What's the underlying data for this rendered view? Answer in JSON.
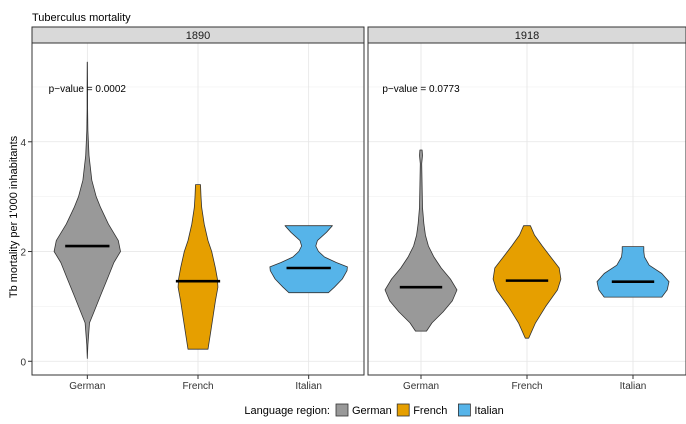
{
  "chart_data": {
    "type": "violin",
    "title": "Tuberculus mortality",
    "ylabel": "Tb mortality per 1'000 inhabitants",
    "xlabel": "",
    "ylim": [
      -0.25,
      5.8
    ],
    "yticks": [
      0,
      2,
      4
    ],
    "grid": true,
    "legend": {
      "title": "Language region:",
      "placement": "bottom",
      "items": [
        {
          "name": "German",
          "color": "#999999"
        },
        {
          "name": "French",
          "color": "#E69F00"
        },
        {
          "name": "Italian",
          "color": "#56B4E9"
        }
      ]
    },
    "categories": [
      "German",
      "French",
      "Italian"
    ],
    "panels": [
      {
        "strip": "1890",
        "annotation": "p−value = 0.0002",
        "annotation_y": 4.98,
        "violins": [
          {
            "category": "German",
            "median": 2.1,
            "max_halfwidth": 0.3,
            "profile": [
              [
                0.05,
                0
              ],
              [
                0.3,
                0.05
              ],
              [
                0.7,
                0.2
              ],
              [
                0.9,
                0.6
              ],
              [
                1.2,
                1.2
              ],
              [
                1.5,
                1.8
              ],
              [
                1.8,
                2.4
              ],
              [
                2.0,
                3.0
              ],
              [
                2.2,
                2.8
              ],
              [
                2.5,
                1.9
              ],
              [
                2.8,
                1.2
              ],
              [
                3.0,
                0.8
              ],
              [
                3.3,
                0.4
              ],
              [
                3.75,
                0.15
              ],
              [
                4.2,
                0.05
              ],
              [
                4.6,
                0.02
              ],
              [
                5.0,
                0.02
              ],
              [
                5.45,
                0.01
              ]
            ]
          },
          {
            "category": "French",
            "median": 1.46,
            "max_halfwidth": 0.18,
            "profile": [
              [
                0.22,
                0.4
              ],
              [
                0.5,
                0.5
              ],
              [
                0.8,
                0.6
              ],
              [
                1.1,
                0.7
              ],
              [
                1.35,
                0.8
              ],
              [
                1.5,
                0.78
              ],
              [
                1.7,
                0.7
              ],
              [
                2.0,
                0.55
              ],
              [
                2.2,
                0.4
              ],
              [
                2.5,
                0.25
              ],
              [
                2.8,
                0.15
              ],
              [
                3.0,
                0.12
              ],
              [
                3.22,
                0.1
              ]
            ]
          },
          {
            "category": "Italian",
            "median": 1.7,
            "max_halfwidth": 0.35,
            "profile": [
              [
                1.25,
                0.5
              ],
              [
                1.35,
                0.65
              ],
              [
                1.5,
                0.85
              ],
              [
                1.65,
                0.97
              ],
              [
                1.72,
                0.98
              ],
              [
                1.8,
                0.7
              ],
              [
                1.9,
                0.4
              ],
              [
                2.0,
                0.25
              ],
              [
                2.1,
                0.18
              ],
              [
                2.2,
                0.22
              ],
              [
                2.35,
                0.45
              ],
              [
                2.47,
                0.6
              ]
            ]
          }
        ]
      },
      {
        "strip": "1918",
        "annotation": "p−value = 0.0773",
        "annotation_y": 4.98,
        "violins": [
          {
            "category": "German",
            "median": 1.35,
            "max_halfwidth": 0.34,
            "profile": [
              [
                0.55,
                0.15
              ],
              [
                0.7,
                0.3
              ],
              [
                0.9,
                0.6
              ],
              [
                1.1,
                0.85
              ],
              [
                1.3,
                0.98
              ],
              [
                1.5,
                0.8
              ],
              [
                1.7,
                0.55
              ],
              [
                1.9,
                0.35
              ],
              [
                2.1,
                0.2
              ],
              [
                2.3,
                0.12
              ],
              [
                2.5,
                0.08
              ],
              [
                2.8,
                0.04
              ],
              [
                3.2,
                0.03
              ],
              [
                3.6,
                0.02
              ],
              [
                3.75,
                0.04
              ],
              [
                3.85,
                0.03
              ]
            ]
          },
          {
            "category": "French",
            "median": 1.47,
            "max_halfwidth": 0.32,
            "profile": [
              [
                0.42,
                0.05
              ],
              [
                0.7,
                0.25
              ],
              [
                1.0,
                0.55
              ],
              [
                1.3,
                0.9
              ],
              [
                1.5,
                1.0
              ],
              [
                1.7,
                0.95
              ],
              [
                1.9,
                0.7
              ],
              [
                2.1,
                0.45
              ],
              [
                2.3,
                0.22
              ],
              [
                2.47,
                0.1
              ]
            ]
          },
          {
            "category": "Italian",
            "median": 1.45,
            "max_halfwidth": 0.34,
            "profile": [
              [
                1.17,
                0.8
              ],
              [
                1.3,
                0.95
              ],
              [
                1.45,
                1.0
              ],
              [
                1.6,
                0.8
              ],
              [
                1.75,
                0.45
              ],
              [
                1.9,
                0.32
              ],
              [
                2.0,
                0.3
              ],
              [
                2.09,
                0.3
              ]
            ]
          }
        ]
      }
    ]
  }
}
